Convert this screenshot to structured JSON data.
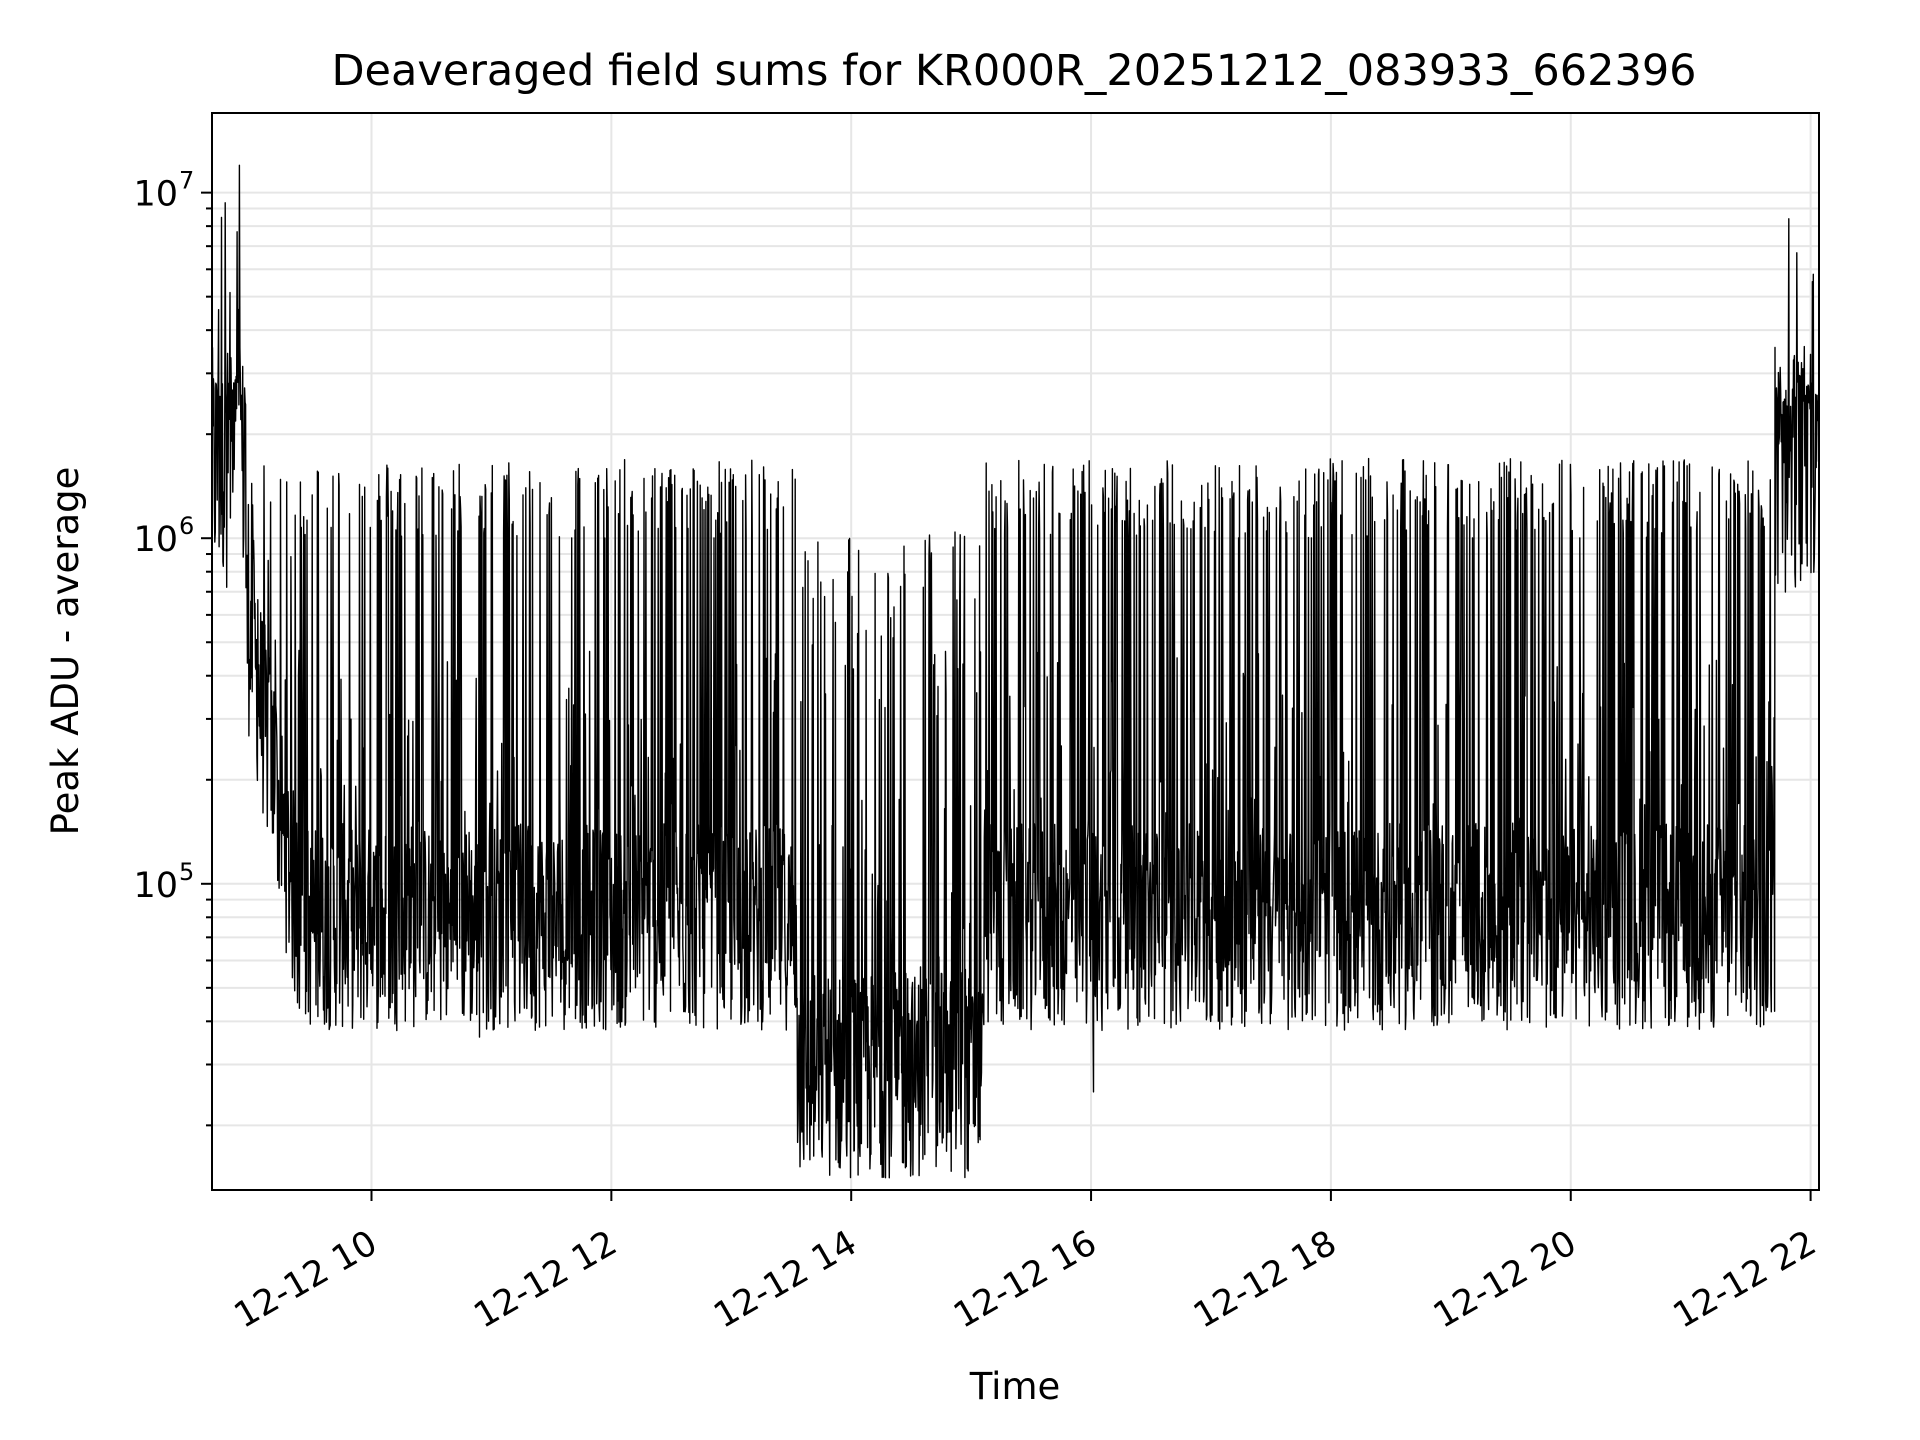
{
  "chart_data": {
    "type": "line",
    "title": "Deaveraged field sums for KR000R_20251212_083933_662396",
    "xlabel": "Time",
    "ylabel": "Peak ADU - average",
    "yscale": "log",
    "xlim_hours": [
      8.67,
      22.07
    ],
    "ylim": [
      13000,
      17000000
    ],
    "grid": true,
    "line_color": "#000000",
    "x_ticks": [
      {
        "hour": 10,
        "label": "12-12 10"
      },
      {
        "hour": 12,
        "label": "12-12 12"
      },
      {
        "hour": 14,
        "label": "12-12 14"
      },
      {
        "hour": 16,
        "label": "12-12 16"
      },
      {
        "hour": 18,
        "label": "12-12 18"
      },
      {
        "hour": 20,
        "label": "12-12 20"
      },
      {
        "hour": 22,
        "label": "12-12 22"
      }
    ],
    "y_ticks": [
      {
        "value": 100000,
        "base": "10",
        "exp": "5"
      },
      {
        "value": 1000000,
        "base": "10",
        "exp": "6"
      },
      {
        "value": 10000000,
        "base": "10",
        "exp": "7"
      }
    ],
    "series": [
      {
        "name": "deaveraged field sum",
        "segments": [
          {
            "start": 8.67,
            "end": 8.95,
            "base": 1600000,
            "base_end": 1600000,
            "spread": 0.35,
            "spikes": [
              2200000,
              3000000
            ],
            "spike_prob": 0.4
          },
          {
            "start": 8.95,
            "end": 9.4,
            "base": 600000,
            "base_end": 75000,
            "spread": 0.3,
            "spikes": [
              300000,
              1500000
            ],
            "spike_prob": 0.15
          },
          {
            "start": 9.4,
            "end": 13.55,
            "base": 75000,
            "base_end": 75000,
            "spread": 0.3,
            "spikes": [
              1000000,
              1700000
            ],
            "spike_prob": 0.16
          },
          {
            "start": 13.55,
            "end": 15.1,
            "base": 28000,
            "base_end": 28000,
            "spread": 0.3,
            "spikes": [
              300000,
              1100000
            ],
            "spike_prob": 0.16
          },
          {
            "start": 15.1,
            "end": 21.7,
            "base": 75000,
            "base_end": 75000,
            "spread": 0.3,
            "spikes": [
              1000000,
              1700000
            ],
            "spike_prob": 0.18
          },
          {
            "start": 21.7,
            "end": 22.07,
            "base": 1500000,
            "base_end": 1700000,
            "spread": 0.35,
            "spikes": [
              2300000,
              3300000
            ],
            "spike_prob": 0.4
          }
        ],
        "notable_points": [
          {
            "hour": 8.9,
            "value": 12000000
          },
          {
            "hour": 10.9,
            "value": 36000
          },
          {
            "hour": 16.02,
            "value": 25000
          },
          {
            "hour": 22.0,
            "value": 3400000
          }
        ]
      }
    ]
  }
}
